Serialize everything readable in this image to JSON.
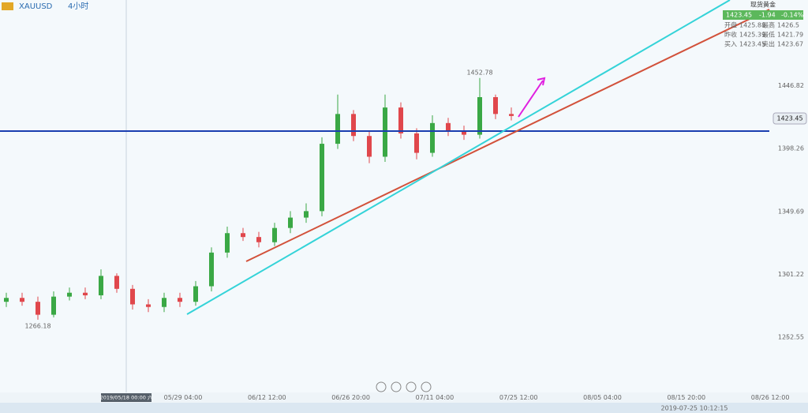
{
  "header": {
    "symbol": "XAUUSD",
    "period": "4小时"
  },
  "quote_panel": {
    "title": "现货黄金",
    "change": -1.94,
    "change_pct": "-0.14%",
    "open_label": "开盘",
    "open": 1425.88,
    "high_label": "最高",
    "high": 1426.5,
    "prev_label": "昨收",
    "prev": 1425.39,
    "low_label": "最低",
    "low": 1421.79,
    "bid_label": "买入",
    "ask_label": "卖出",
    "ask": 1423.67
  },
  "chart_data": {
    "type": "candlestick",
    "x_labels": [
      "05/29 04:00",
      "06/12 12:00",
      "06/26 20:00",
      "07/11 04:00",
      "07/25 12:00",
      "08/05 04:00",
      "08/15 20:00",
      "08/26 12:00"
    ],
    "crosshair_label": "2019/05/18 00:00 六",
    "open": [
      1280,
      1283,
      1280,
      1270,
      1284,
      1287,
      1285,
      1300,
      1290,
      1278,
      1276,
      1283,
      1280,
      1292,
      1318,
      1333,
      1330,
      1326,
      1337,
      1345,
      1350,
      1402,
      1425,
      1408,
      1392,
      1430,
      1410,
      1395,
      1418,
      1412,
      1409,
      1438,
      1425
    ],
    "high": [
      1287,
      1287,
      1284,
      1288,
      1291,
      1291,
      1305,
      1302,
      1293,
      1282,
      1287,
      1287,
      1296,
      1322,
      1338,
      1337,
      1334,
      1341,
      1350,
      1356,
      1407,
      1440,
      1428,
      1412,
      1440,
      1434,
      1414,
      1424,
      1422,
      1416,
      1452.78,
      1440,
      1430
    ],
    "low": [
      1276,
      1277,
      1266.18,
      1268,
      1281,
      1282,
      1282,
      1287,
      1274,
      1272,
      1272,
      1276,
      1277,
      1288,
      1314,
      1327,
      1322,
      1323,
      1333,
      1341,
      1346,
      1398,
      1404,
      1387,
      1388,
      1406,
      1390,
      1392,
      1408,
      1405,
      1406,
      1421,
      1420
    ],
    "close": [
      1283,
      1280,
      1270,
      1284,
      1287,
      1285,
      1300,
      1290,
      1278,
      1276,
      1283,
      1280,
      1292,
      1318,
      1333,
      1330,
      1326,
      1337,
      1345,
      1350,
      1402,
      1425,
      1408,
      1392,
      1430,
      1410,
      1395,
      1418,
      1412,
      1409,
      1438,
      1425,
      1423.45
    ],
    "up_color": "#3aa845",
    "down_color": "#e0474c",
    "ylim": [
      1210,
      1513
    ],
    "yticks": [
      1252.55,
      1301.22,
      1349.69,
      1398.26,
      1446.82
    ]
  },
  "status_bar": {
    "time": "2019-07-25 10:12:15"
  }
}
